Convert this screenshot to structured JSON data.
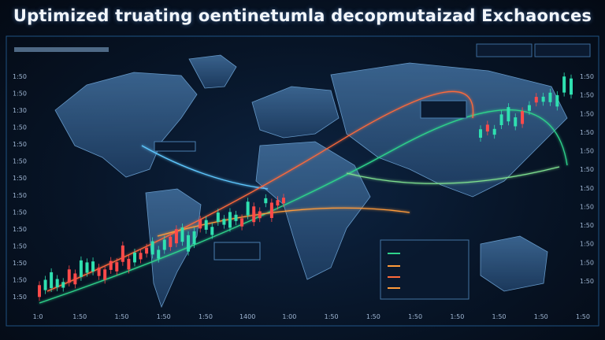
{
  "header": {
    "title": "Uptimized truating oentinetumla decopmutaizad Exchaonces"
  },
  "axis": {
    "bottom": [
      "1:0",
      "1:50",
      "1:50",
      "1:50",
      "1:50",
      "1400",
      "1:00",
      "1:50",
      "1:50",
      "1:50",
      "1:50",
      "1:50",
      "1:50",
      "1:50"
    ],
    "left": [
      "1:50",
      "1:50",
      "1:30",
      "1:50",
      "1:50",
      "1:50",
      "1:50",
      "1:50",
      "1:50",
      "1:50",
      "1:50",
      "1:50",
      "1:50",
      "1:50"
    ],
    "right": [
      "1:50",
      "1:50",
      "1:50",
      "1:50",
      "1:50",
      "1:50",
      "1:50",
      "1:50",
      "1:50",
      "1:50",
      "1:50",
      "1:50"
    ]
  }
}
